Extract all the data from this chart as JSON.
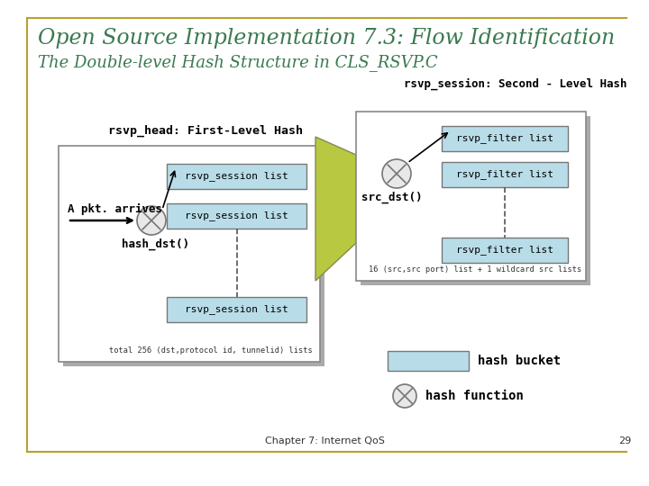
{
  "title": "Open Source Implementation 7.3: Flow Identification",
  "subtitle": "The Double-level Hash Structure in CLS_RSVP.C",
  "title_color": "#3a7a50",
  "subtitle_color": "#3a7a50",
  "bg_color": "#ffffff",
  "border_color": "#b8a030",
  "footer_text": "Chapter 7: Internet QoS",
  "footer_page": "29",
  "first_level_label": "rsvp_head: First-Level Hash",
  "second_level_label": "rsvp_session: Second - Level Hash",
  "session_label": "rsvp_session list",
  "filter_label": "rsvp_filter list",
  "hash_dst_label": "hash_dst()",
  "src_dst_label": "src_dst()",
  "a_pkt_label": "A pkt. arrives",
  "total_label": "total 256 (dst,protocol id, tunnelid) lists",
  "wildcard_label": "16 (src,src port) list + 1 wildcard src lists",
  "hash_bucket_label": "hash bucket",
  "hash_function_label": "hash function",
  "box_fill": "#b8dde8",
  "box_edge": "#777777",
  "bg_box_fill": "#ffffff",
  "bg_box_edge": "#888888",
  "trapezoid_fill": "#b8c840",
  "trapezoid_edge": "#888855",
  "shadow_color": "#aaaaaa",
  "circle_fill": "#e8e8e8",
  "circle_edge": "#777777",
  "arrow_color": "#000000",
  "dashed_color": "#555555",
  "text_color": "#000000",
  "font_mono": "DejaVu Sans Mono",
  "font_title": "DejaVu Serif"
}
